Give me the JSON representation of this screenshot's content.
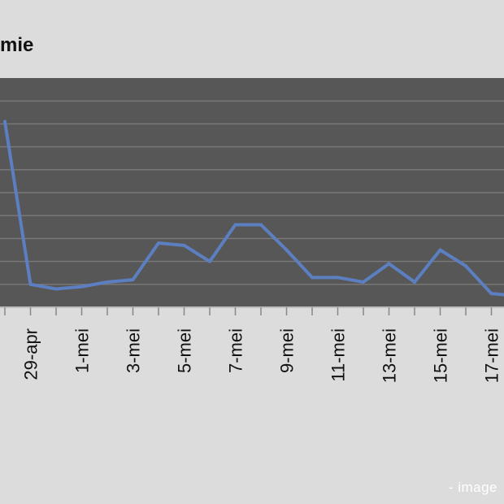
{
  "title": "mie",
  "watermark": "- image",
  "colors": {
    "background": "#dcdcdc",
    "plot_area": "#575757",
    "gridline": "#7a7a7a",
    "axis": "#bdbdbd",
    "series_line": "#5b7fc0"
  },
  "chart_data": {
    "type": "line",
    "title": "mie",
    "xlabel": "",
    "ylabel": "",
    "x_tick_labels": [
      "29-apr",
      "1-mei",
      "3-mei",
      "5-mei",
      "7-mei",
      "9-mei",
      "11-mei",
      "13-mei",
      "15-mei",
      "17-mei"
    ],
    "grid": true,
    "legend": "none",
    "ylim": [
      0,
      10
    ],
    "series": [
      {
        "x": [
          "28-apr",
          "29-apr",
          "30-apr",
          "1-mei",
          "2-mei",
          "3-mei",
          "4-mei",
          "5-mei",
          "6-mei",
          "7-mei",
          "8-mei",
          "9-mei",
          "10-mei",
          "11-mei",
          "12-mei",
          "13-mei",
          "14-mei",
          "15-mei",
          "16-mei",
          "17-mei",
          "18-mei"
        ],
        "values": [
          8.1,
          1.0,
          0.8,
          0.9,
          1.1,
          1.2,
          2.8,
          2.7,
          2.0,
          3.6,
          3.6,
          2.5,
          1.3,
          1.3,
          1.1,
          1.9,
          1.1,
          2.5,
          1.8,
          0.6,
          0.5
        ]
      }
    ]
  }
}
